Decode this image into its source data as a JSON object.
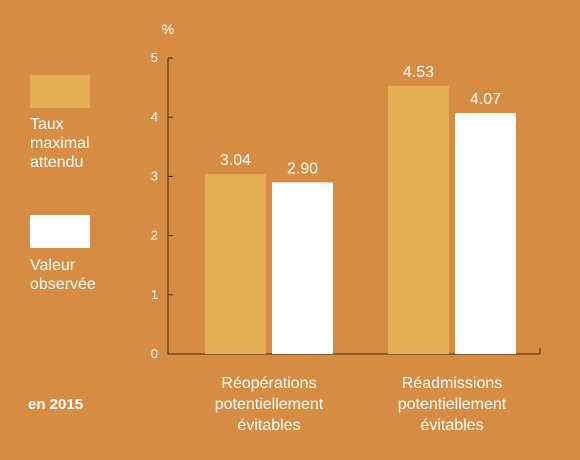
{
  "chart_data": {
    "type": "bar",
    "ylabel": "%",
    "ylim": [
      0,
      5
    ],
    "yticks": [
      0,
      1,
      2,
      3,
      4,
      5
    ],
    "categories": [
      [
        "Réopérations",
        "potentiellement",
        "évitables"
      ],
      [
        "Réadmissions",
        "potentiellement",
        "évitables"
      ]
    ],
    "series": [
      {
        "name": "Taux maximal attendu",
        "values": [
          3.04,
          4.53
        ],
        "labels": [
          "3.04",
          "4.53"
        ],
        "color": "#E3AE55"
      },
      {
        "name": "Valeur observée",
        "values": [
          2.9,
          4.07
        ],
        "labels": [
          "2.90",
          "4.07"
        ],
        "color": "#FFFFFF"
      }
    ],
    "legend": {
      "placement": "left",
      "items": [
        {
          "lines": [
            "Taux",
            "maximal",
            "attendu"
          ],
          "color": "#E3AE55"
        },
        {
          "lines": [
            "Valeur",
            "observée"
          ],
          "color": "#FFFFFF"
        }
      ]
    },
    "annotation": "en 2015",
    "grid": false
  },
  "colors": {
    "background": "#D68C42",
    "axis": "#3A2A1A",
    "text": "#FFFFFF"
  }
}
